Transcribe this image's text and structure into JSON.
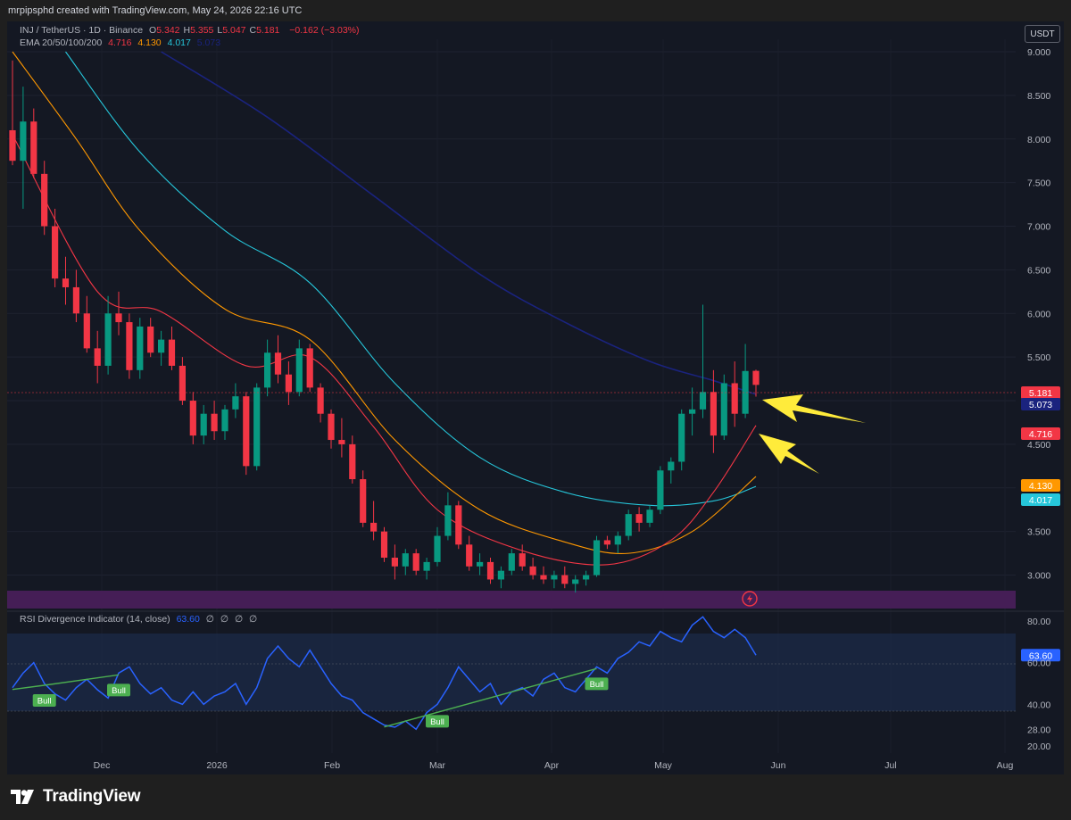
{
  "caption": "mrpipsphd created with TradingView.com, May 24, 2026 22:16 UTC",
  "brand": "TradingView",
  "currency_button": "USDT",
  "legend": {
    "symbol": "INJ / TetherUS · 1D · Binance",
    "ohlc": [
      {
        "k": "O",
        "v": "5.342"
      },
      {
        "k": "H",
        "v": "5.355"
      },
      {
        "k": "L",
        "v": "5.047"
      },
      {
        "k": "C",
        "v": "5.181"
      }
    ],
    "change": "−0.162 (−3.03%)",
    "ema_label": "EMA 20/50/100/200",
    "ema_values": [
      "4.716",
      "4.130",
      "4.017",
      "5.073"
    ]
  },
  "rsi_legend": {
    "label": "RSI Divergence Indicator (14, close)",
    "value": "63.60",
    "extras": [
      "∅",
      "∅",
      "∅",
      "∅"
    ]
  },
  "colors": {
    "up": "#089981",
    "down": "#f23645",
    "ema20": "#f23645",
    "ema50": "#ff9800",
    "ema100": "#26c6da",
    "ema200": "#1a237e",
    "rsi": "#2962ff",
    "bull": "#4caf50",
    "arrow": "#ffeb3b"
  },
  "chart_data": {
    "type": "candlestick",
    "price_axis": {
      "min": 2.75,
      "max": 9.0,
      "ticks": [
        "9.000",
        "8.500",
        "8.000",
        "7.500",
        "7.000",
        "6.500",
        "6.000",
        "5.500",
        "5.000",
        "4.500",
        "4.000",
        "3.500",
        "3.000"
      ]
    },
    "time_axis": [
      "Dec",
      "2026",
      "Feb",
      "Mar",
      "Apr",
      "May",
      "Jun",
      "Jul",
      "Aug"
    ],
    "candles_ohlc": [
      [
        8.1,
        8.9,
        7.7,
        7.75
      ],
      [
        7.75,
        8.6,
        7.2,
        8.2
      ],
      [
        8.2,
        8.35,
        7.55,
        7.6
      ],
      [
        7.6,
        7.75,
        6.9,
        7.0
      ],
      [
        7.0,
        7.2,
        6.3,
        6.4
      ],
      [
        6.4,
        6.65,
        6.1,
        6.3
      ],
      [
        6.3,
        6.5,
        5.9,
        6.0
      ],
      [
        6.0,
        6.2,
        5.55,
        5.6
      ],
      [
        5.6,
        5.8,
        5.2,
        5.4
      ],
      [
        5.4,
        6.2,
        5.3,
        6.0
      ],
      [
        6.0,
        6.25,
        5.75,
        5.9
      ],
      [
        5.9,
        6.0,
        5.25,
        5.35
      ],
      [
        5.35,
        5.95,
        5.25,
        5.85
      ],
      [
        5.85,
        5.95,
        5.5,
        5.55
      ],
      [
        5.55,
        5.8,
        5.4,
        5.7
      ],
      [
        5.7,
        5.85,
        5.35,
        5.4
      ],
      [
        5.4,
        5.5,
        4.95,
        5.0
      ],
      [
        5.0,
        5.1,
        4.5,
        4.6
      ],
      [
        4.6,
        4.95,
        4.5,
        4.85
      ],
      [
        4.85,
        5.0,
        4.55,
        4.65
      ],
      [
        4.65,
        4.95,
        4.55,
        4.9
      ],
      [
        4.9,
        5.2,
        4.8,
        5.05
      ],
      [
        5.05,
        5.1,
        4.15,
        4.25
      ],
      [
        4.25,
        5.2,
        4.2,
        5.15
      ],
      [
        5.15,
        5.7,
        5.05,
        5.55
      ],
      [
        5.55,
        5.75,
        5.2,
        5.3
      ],
      [
        5.3,
        5.45,
        4.95,
        5.1
      ],
      [
        5.1,
        5.7,
        5.05,
        5.6
      ],
      [
        5.6,
        5.65,
        5.1,
        5.15
      ],
      [
        5.15,
        5.2,
        4.75,
        4.85
      ],
      [
        4.85,
        4.9,
        4.45,
        4.55
      ],
      [
        4.55,
        4.8,
        4.35,
        4.5
      ],
      [
        4.5,
        4.6,
        4.05,
        4.1
      ],
      [
        4.1,
        4.2,
        3.55,
        3.6
      ],
      [
        3.6,
        3.85,
        3.4,
        3.5
      ],
      [
        3.5,
        3.55,
        3.15,
        3.2
      ],
      [
        3.2,
        3.35,
        2.95,
        3.1
      ],
      [
        3.1,
        3.3,
        3.0,
        3.25
      ],
      [
        3.25,
        3.3,
        3.0,
        3.05
      ],
      [
        3.05,
        3.2,
        2.95,
        3.15
      ],
      [
        3.15,
        3.55,
        3.1,
        3.45
      ],
      [
        3.45,
        3.95,
        3.4,
        3.8
      ],
      [
        3.8,
        3.85,
        3.3,
        3.35
      ],
      [
        3.35,
        3.45,
        3.05,
        3.1
      ],
      [
        3.1,
        3.25,
        3.0,
        3.15
      ],
      [
        3.15,
        3.2,
        2.9,
        2.95
      ],
      [
        2.95,
        3.1,
        2.85,
        3.05
      ],
      [
        3.05,
        3.3,
        3.0,
        3.25
      ],
      [
        3.25,
        3.35,
        3.05,
        3.1
      ],
      [
        3.1,
        3.2,
        2.95,
        3.0
      ],
      [
        3.0,
        3.1,
        2.9,
        2.95
      ],
      [
        2.95,
        3.05,
        2.85,
        3.0
      ],
      [
        3.0,
        3.1,
        2.85,
        2.9
      ],
      [
        2.9,
        3.0,
        2.8,
        2.95
      ],
      [
        2.95,
        3.05,
        2.88,
        3.0
      ],
      [
        3.0,
        3.45,
        2.98,
        3.4
      ],
      [
        3.4,
        3.45,
        3.3,
        3.35
      ],
      [
        3.35,
        3.5,
        3.25,
        3.45
      ],
      [
        3.45,
        3.75,
        3.4,
        3.7
      ],
      [
        3.7,
        3.78,
        3.5,
        3.6
      ],
      [
        3.6,
        3.8,
        3.55,
        3.75
      ],
      [
        3.75,
        4.25,
        3.7,
        4.2
      ],
      [
        4.2,
        4.35,
        4.05,
        4.3
      ],
      [
        4.3,
        4.9,
        4.2,
        4.85
      ],
      [
        4.85,
        5.15,
        4.6,
        4.9
      ],
      [
        4.9,
        6.1,
        4.8,
        5.1
      ],
      [
        5.1,
        5.35,
        4.4,
        4.6
      ],
      [
        4.6,
        5.3,
        4.55,
        5.2
      ],
      [
        5.2,
        5.45,
        4.7,
        4.85
      ],
      [
        4.85,
        5.65,
        4.8,
        5.34
      ],
      [
        5.342,
        5.355,
        5.047,
        5.181
      ]
    ],
    "ema": {
      "ema20_points": [
        [
          0,
          8.05
        ],
        [
          8,
          6.25
        ],
        [
          14,
          6.02
        ],
        [
          22,
          5.4
        ],
        [
          28,
          5.5
        ],
        [
          34,
          4.7
        ],
        [
          40,
          3.75
        ],
        [
          48,
          3.28
        ],
        [
          56,
          3.12
        ],
        [
          62,
          3.4
        ],
        [
          66,
          3.95
        ],
        [
          70,
          4.716
        ]
      ],
      "ema50_points": [
        [
          0,
          9.0
        ],
        [
          6,
          8.0
        ],
        [
          12,
          6.95
        ],
        [
          20,
          6.05
        ],
        [
          28,
          5.7
        ],
        [
          36,
          4.55
        ],
        [
          44,
          3.75
        ],
        [
          52,
          3.38
        ],
        [
          58,
          3.25
        ],
        [
          64,
          3.5
        ],
        [
          70,
          4.13
        ]
      ],
      "ema100_points": [
        [
          5,
          9.0
        ],
        [
          12,
          7.85
        ],
        [
          20,
          6.95
        ],
        [
          28,
          6.35
        ],
        [
          36,
          5.2
        ],
        [
          44,
          4.35
        ],
        [
          52,
          3.95
        ],
        [
          60,
          3.8
        ],
        [
          66,
          3.85
        ],
        [
          70,
          4.017
        ]
      ],
      "ema200_points": [
        [
          14,
          9.0
        ],
        [
          24,
          8.25
        ],
        [
          34,
          7.35
        ],
        [
          44,
          6.45
        ],
        [
          52,
          5.9
        ],
        [
          60,
          5.45
        ],
        [
          66,
          5.23
        ],
        [
          70,
          5.073
        ]
      ]
    },
    "price_badges": [
      {
        "value": "5.181",
        "price": 5.181,
        "color": "#f23645"
      },
      {
        "value": "5.073",
        "price": 5.073,
        "color": "#1a237e"
      },
      {
        "value": "4.716",
        "price": 4.716,
        "color": "#f23645"
      },
      {
        "value": "4.130",
        "price": 4.13,
        "color": "#ff9800"
      },
      {
        "value": "4.017",
        "price": 4.017,
        "color": "#26c6da"
      }
    ],
    "rsi": {
      "axis": {
        "min": 20,
        "max": 80,
        "ticks": [
          "80.00",
          "60.00",
          "40.00",
          "28.00",
          "20.00"
        ]
      },
      "values": [
        48,
        55,
        60,
        50,
        45,
        42,
        48,
        52,
        47,
        43,
        55,
        58,
        50,
        45,
        48,
        42,
        40,
        46,
        40,
        44,
        46,
        50,
        40,
        48,
        62,
        68,
        62,
        58,
        66,
        58,
        50,
        44,
        42,
        36,
        33,
        30,
        29,
        32,
        28,
        36,
        40,
        48,
        58,
        52,
        46,
        50,
        40,
        46,
        48,
        44,
        52,
        55,
        48,
        46,
        52,
        58,
        55,
        62,
        65,
        70,
        68,
        75,
        72,
        70,
        78,
        82,
        75,
        72,
        76,
        72,
        63.6
      ],
      "current": "63.60",
      "bull_labels": [
        {
          "text": "Bull",
          "index": 3
        },
        {
          "text": "Bull",
          "index": 10
        },
        {
          "text": "Bull",
          "index": 40
        },
        {
          "text": "Bull",
          "index": 55
        }
      ]
    }
  }
}
